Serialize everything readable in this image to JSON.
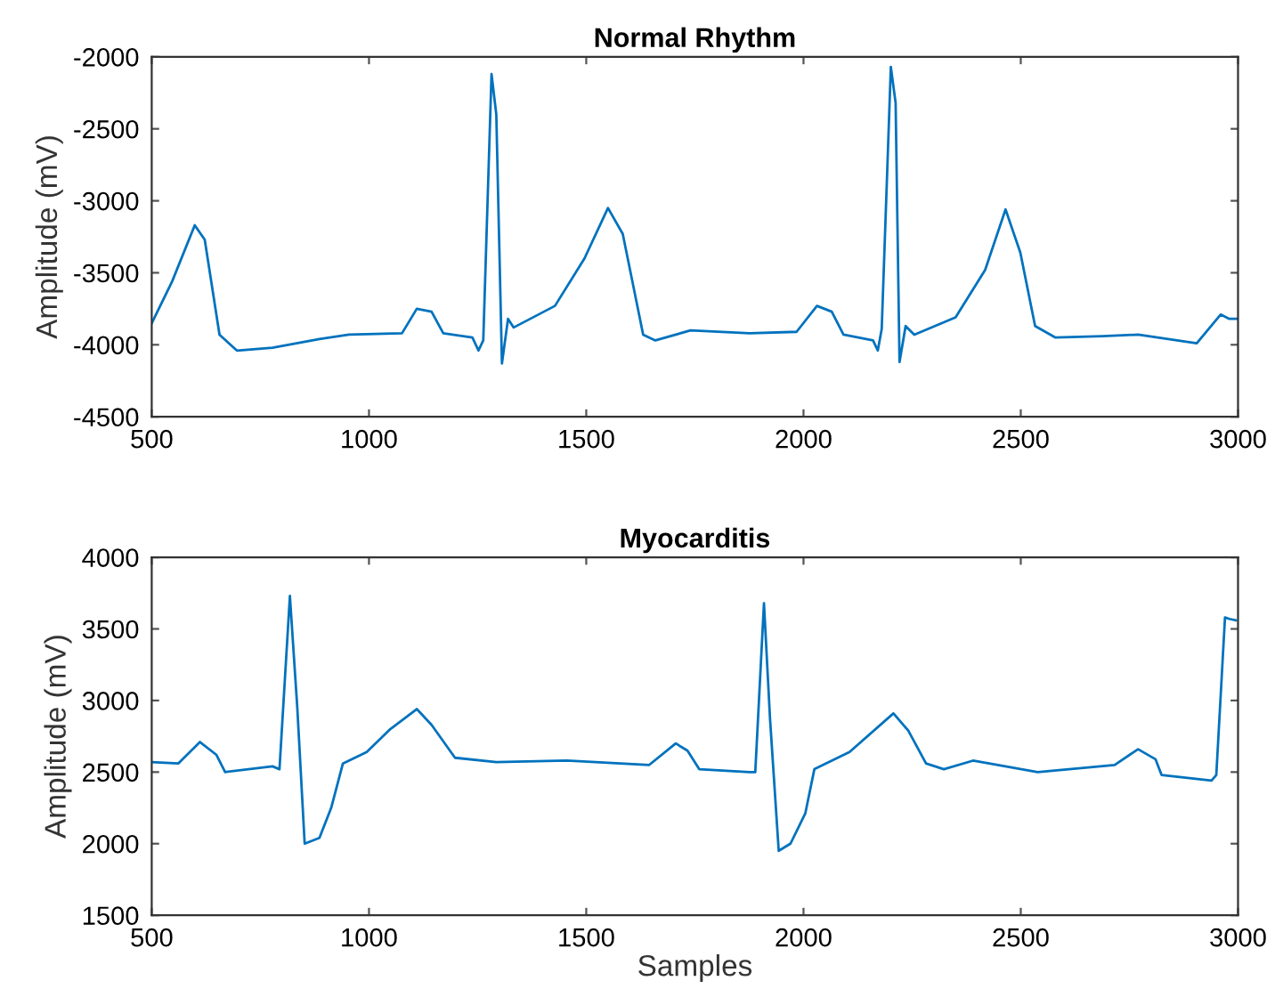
{
  "chart_data": [
    {
      "type": "line",
      "title": "Normal Rhythm",
      "ylabel": "Amplitude (mV)",
      "xlim": [
        500,
        3000
      ],
      "xticks": [
        500,
        1000,
        1500,
        2000,
        2500,
        3000
      ],
      "ylim": [
        -4500,
        -2000
      ],
      "yticks": [
        -4500,
        -4000,
        -3500,
        -3000,
        -2500,
        -2000
      ],
      "grid": false,
      "series": [
        {
          "color": "#0072bd",
          "x": [
            500,
            547,
            599,
            622,
            656,
            696,
            778,
            886,
            954,
            1076,
            1110,
            1144,
            1171,
            1238,
            1252,
            1263,
            1282,
            1293,
            1306,
            1320,
            1333,
            1428,
            1496,
            1550,
            1584,
            1631,
            1659,
            1740,
            1876,
            1984,
            2031,
            2065,
            2092,
            2160,
            2171,
            2180,
            2201,
            2212,
            2221,
            2235,
            2255,
            2350,
            2418,
            2465,
            2499,
            2533,
            2580,
            2689,
            2770,
            2905,
            2960,
            2980,
            3000
          ],
          "values": [
            -3850,
            -3560,
            -3170,
            -3270,
            -3930,
            -4040,
            -4020,
            -3960,
            -3930,
            -3920,
            -3750,
            -3770,
            -3920,
            -3950,
            -4040,
            -3970,
            -2120,
            -2400,
            -4130,
            -3820,
            -3880,
            -3730,
            -3400,
            -3050,
            -3230,
            -3930,
            -3970,
            -3900,
            -3920,
            -3910,
            -3730,
            -3770,
            -3930,
            -3970,
            -4040,
            -3890,
            -2070,
            -2320,
            -4120,
            -3870,
            -3930,
            -3810,
            -3480,
            -3060,
            -3360,
            -3870,
            -3950,
            -3940,
            -3930,
            -3990,
            -3790,
            -3820,
            -3820
          ]
        }
      ]
    },
    {
      "type": "line",
      "title": "Myocarditis",
      "xlabel": "Samples",
      "ylabel": "Amplitude (mV)",
      "xlim": [
        500,
        3000
      ],
      "xticks": [
        500,
        1000,
        1500,
        2000,
        2500,
        3000
      ],
      "ylim": [
        1500,
        4000
      ],
      "yticks": [
        1500,
        2000,
        2500,
        3000,
        3500,
        4000
      ],
      "grid": false,
      "series": [
        {
          "color": "#0072bd",
          "x": [
            500,
            561,
            611,
            649,
            669,
            778,
            794,
            818,
            835,
            852,
            886,
            913,
            940,
            995,
            1049,
            1110,
            1144,
            1198,
            1293,
            1455,
            1645,
            1706,
            1733,
            1760,
            1876,
            1889,
            1909,
            1923,
            1943,
            1970,
            2004,
            2025,
            2106,
            2207,
            2241,
            2282,
            2323,
            2390,
            2539,
            2716,
            2770,
            2810,
            2824,
            2939,
            2950,
            2970,
            2980,
            2995
          ],
          "values": [
            2570,
            2560,
            2710,
            2620,
            2500,
            2540,
            2520,
            3730,
            2950,
            2000,
            2040,
            2250,
            2560,
            2640,
            2800,
            2940,
            2830,
            2600,
            2570,
            2580,
            2550,
            2700,
            2650,
            2520,
            2500,
            2500,
            3680,
            2870,
            1950,
            2000,
            2210,
            2520,
            2640,
            2910,
            2790,
            2560,
            2520,
            2580,
            2500,
            2550,
            2660,
            2590,
            2480,
            2440,
            2480,
            3580,
            3570,
            3560
          ]
        }
      ]
    }
  ]
}
